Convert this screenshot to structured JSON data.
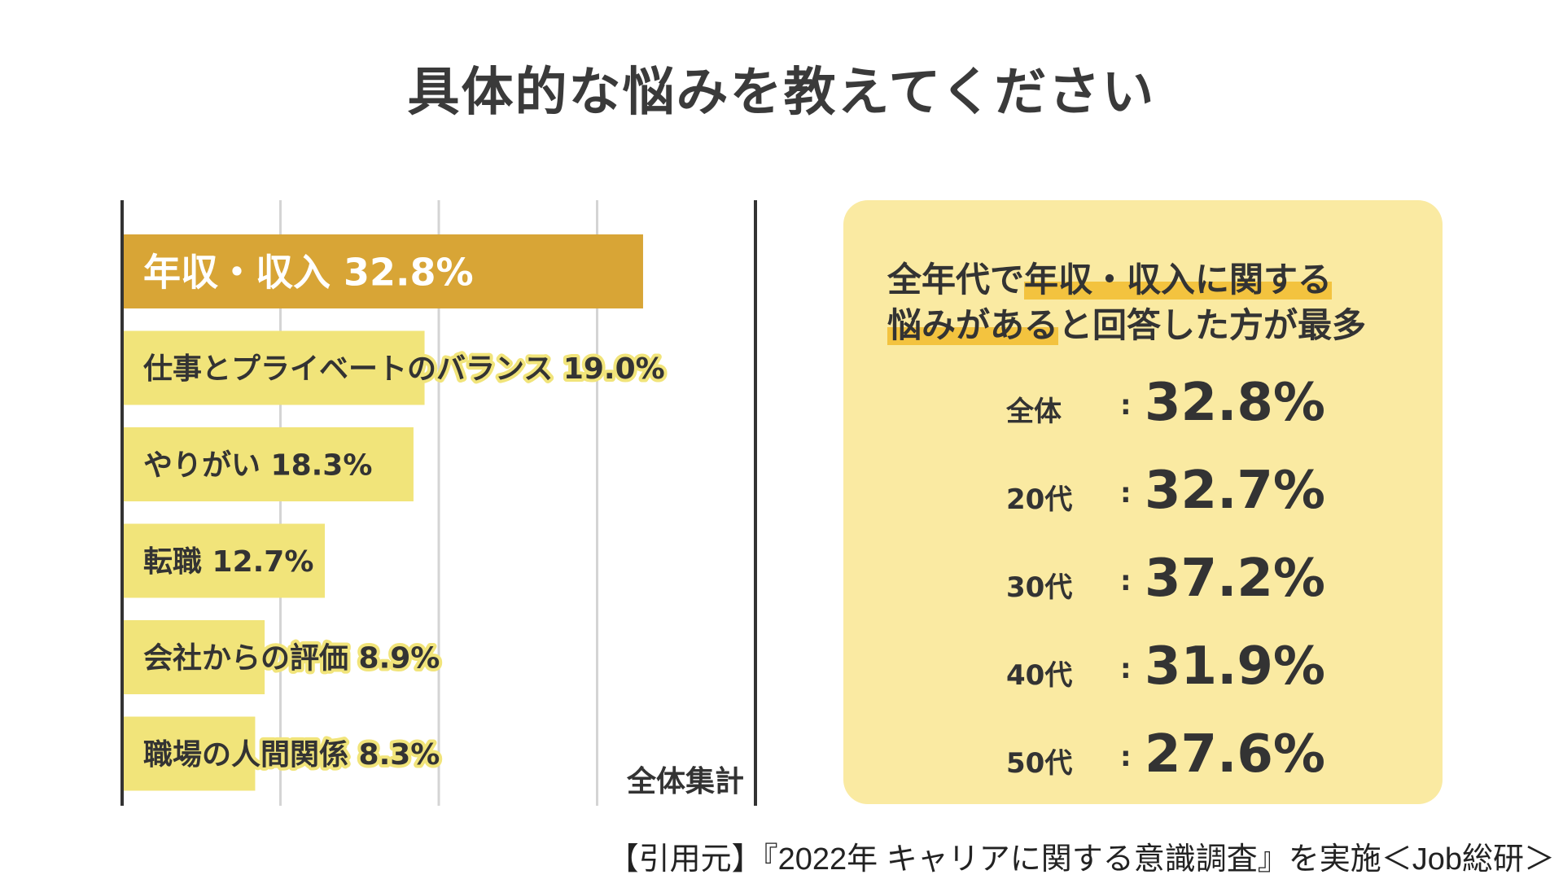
{
  "title": "具体的な悩みを教えてください",
  "chart_data": {
    "type": "bar",
    "orientation": "horizontal",
    "categories": [
      "年収・収入",
      "仕事とプライベートのバランス",
      "やりがい",
      "転職",
      "会社からの評価",
      "職場の人間関係"
    ],
    "values": [
      32.8,
      19.0,
      18.3,
      12.7,
      8.9,
      8.3
    ],
    "value_labels": [
      "32.8%",
      "19.0%",
      "18.3%",
      "12.7%",
      "8.9%",
      "8.3%"
    ],
    "unit": "%",
    "xlim": [
      0,
      40
    ],
    "gridlines": [
      10,
      20,
      30
    ],
    "grid": true,
    "highlight_index": 0,
    "caption": "全体集計",
    "colors": {
      "highlight_bar": "#d8a536",
      "bar": "#f1e47a",
      "highlight_text": "#ffffff",
      "text": "#333333",
      "grid": "#d4d4d4",
      "axis": "#333333"
    }
  },
  "summary": {
    "headline": {
      "line1_prefix": "全年代で",
      "line1_highlight": "年収・収入に関する",
      "line2_highlight": "悩みがある",
      "line2_suffix": "と回答した方が最多"
    },
    "stats": [
      {
        "label": "全体",
        "value": "32.8%"
      },
      {
        "label": "20代",
        "value": "32.7%"
      },
      {
        "label": "30代",
        "value": "37.2%"
      },
      {
        "label": "40代",
        "value": "31.9%"
      },
      {
        "label": "50代",
        "value": "27.6%"
      }
    ],
    "colors": {
      "panel_bg": "#faeaa2",
      "highlight": "#f3c33f"
    }
  },
  "citation": "【引用元】『2022年 キャリアに関する意識調査』を実施＜Job総研＞"
}
